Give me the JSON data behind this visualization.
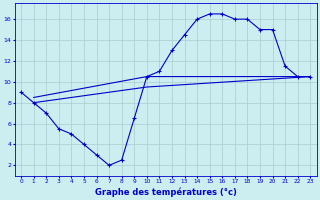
{
  "title": "",
  "xlabel": "Graphe des températures (°c)",
  "ylabel": "",
  "background_color": "#cceef0",
  "grid_color": "#aacccc",
  "line_color": "#0000cc",
  "xlim": [
    -0.5,
    23.5
  ],
  "ylim": [
    1,
    17.5
  ],
  "yticks": [
    2,
    4,
    6,
    8,
    10,
    12,
    14,
    16
  ],
  "xticks": [
    0,
    1,
    2,
    3,
    4,
    5,
    6,
    7,
    8,
    9,
    10,
    11,
    12,
    13,
    14,
    15,
    16,
    17,
    18,
    19,
    20,
    21,
    22,
    23
  ],
  "line1_x": [
    0,
    1,
    2,
    3,
    4,
    5,
    6,
    7,
    8,
    9,
    10,
    11,
    12,
    13,
    14,
    15,
    16,
    17,
    18,
    19,
    20,
    21,
    22,
    23
  ],
  "line1_y": [
    9,
    8,
    7,
    5.5,
    5,
    4,
    3,
    2,
    2.5,
    6.5,
    10.5,
    11,
    13,
    14.5,
    16,
    16.5,
    16.5,
    16,
    16,
    15,
    15,
    11.5,
    10.5,
    10.5
  ],
  "line2_x": [
    1,
    10,
    23
  ],
  "line2_y": [
    8.5,
    10.5,
    10.5
  ],
  "line3_x": [
    1,
    10,
    23
  ],
  "line3_y": [
    8.0,
    9.5,
    10.5
  ],
  "figwidth": 3.2,
  "figheight": 2.0,
  "dpi": 100
}
